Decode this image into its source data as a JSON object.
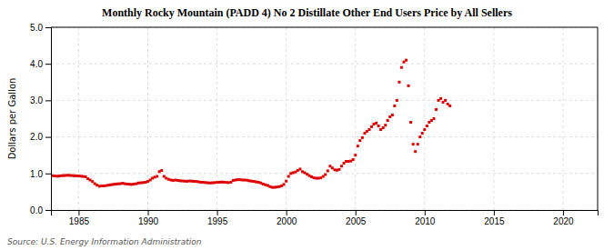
{
  "chart_data": {
    "type": "scatter",
    "title": "Monthly Rocky Mountain (PADD 4) No 2 Distillate Other End Users Price by All Sellers",
    "ylabel": "Dollars per Gallon",
    "annotations": [
      "Source: U.S. Energy Information Administration"
    ],
    "color": "#dd0000",
    "marker": "square",
    "grid": true,
    "xlim": [
      1983,
      2022.5
    ],
    "ylim": [
      0,
      5
    ],
    "xticks": [
      1985,
      1990,
      1995,
      2000,
      2005,
      2010,
      2015,
      2020
    ],
    "yticks": [
      {
        "value": 0,
        "label": "0.0"
      },
      {
        "value": 1,
        "label": "1.0"
      },
      {
        "value": 2,
        "label": "2.0"
      },
      {
        "value": 3,
        "label": "3.0"
      },
      {
        "value": 4,
        "label": "4.0"
      },
      {
        "value": 5,
        "label": "5.0"
      }
    ],
    "x": [
      1983.17,
      1983.33,
      1983.5,
      1983.67,
      1983.83,
      1984,
      1984.17,
      1984.33,
      1984.5,
      1984.67,
      1984.83,
      1985,
      1985.17,
      1985.33,
      1985.5,
      1985.67,
      1985.83,
      1986,
      1986.17,
      1986.33,
      1986.5,
      1986.67,
      1986.83,
      1987,
      1987.17,
      1987.33,
      1987.5,
      1987.67,
      1987.83,
      1988,
      1988.17,
      1988.33,
      1988.5,
      1988.67,
      1988.83,
      1989,
      1989.17,
      1989.33,
      1989.5,
      1989.67,
      1989.83,
      1990,
      1990.17,
      1990.33,
      1990.5,
      1990.67,
      1990.83,
      1991,
      1991.17,
      1991.33,
      1991.5,
      1991.67,
      1991.83,
      1992,
      1992.17,
      1992.33,
      1992.5,
      1992.67,
      1992.83,
      1993,
      1993.17,
      1993.33,
      1993.5,
      1993.67,
      1993.83,
      1994,
      1994.17,
      1994.33,
      1994.5,
      1994.67,
      1994.83,
      1995,
      1995.17,
      1995.33,
      1995.5,
      1995.67,
      1995.83,
      1996,
      1996.17,
      1996.33,
      1996.5,
      1996.67,
      1996.83,
      1997,
      1997.17,
      1997.33,
      1997.5,
      1997.67,
      1997.83,
      1998,
      1998.17,
      1998.33,
      1998.5,
      1998.67,
      1998.83,
      1999,
      1999.17,
      1999.33,
      1999.5,
      1999.67,
      1999.83,
      2000,
      2000.17,
      2000.33,
      2000.5,
      2000.67,
      2000.83,
      2001,
      2001.17,
      2001.33,
      2001.5,
      2001.67,
      2001.83,
      2002,
      2002.17,
      2002.33,
      2002.5,
      2002.67,
      2002.83,
      2003,
      2003.17,
      2003.33,
      2003.5,
      2003.67,
      2003.83,
      2004,
      2004.17,
      2004.33,
      2004.5,
      2004.67,
      2004.83,
      2005,
      2005.17,
      2005.33,
      2005.5,
      2005.67,
      2005.83,
      2006,
      2006.17,
      2006.33,
      2006.5,
      2006.67,
      2006.83,
      2007,
      2007.17,
      2007.33,
      2007.5,
      2007.67,
      2007.83,
      2008,
      2008.17,
      2008.33,
      2008.5,
      2008.67,
      2008.83,
      2009,
      2009.17,
      2009.33,
      2009.5,
      2009.67,
      2009.83,
      2010,
      2010.17,
      2010.33,
      2010.5,
      2010.67,
      2010.83,
      2011,
      2011.17,
      2011.33,
      2011.5,
      2011.67,
      2011.83
    ],
    "values": [
      0.937,
      0.93,
      0.925,
      0.935,
      0.94,
      0.945,
      0.95,
      0.948,
      0.942,
      0.938,
      0.935,
      0.93,
      0.925,
      0.918,
      0.91,
      0.855,
      0.82,
      0.78,
      0.72,
      0.68,
      0.65,
      0.66,
      0.66,
      0.67,
      0.68,
      0.69,
      0.7,
      0.71,
      0.715,
      0.72,
      0.73,
      0.72,
      0.71,
      0.705,
      0.7,
      0.71,
      0.72,
      0.74,
      0.745,
      0.75,
      0.76,
      0.78,
      0.82,
      0.87,
      0.9,
      0.92,
      1.05,
      1.08,
      0.92,
      0.87,
      0.84,
      0.82,
      0.81,
      0.82,
      0.81,
      0.8,
      0.795,
      0.79,
      0.785,
      0.795,
      0.79,
      0.785,
      0.78,
      0.77,
      0.76,
      0.76,
      0.75,
      0.745,
      0.74,
      0.745,
      0.75,
      0.755,
      0.76,
      0.765,
      0.76,
      0.755,
      0.75,
      0.76,
      0.81,
      0.82,
      0.83,
      0.83,
      0.82,
      0.82,
      0.815,
      0.8,
      0.79,
      0.78,
      0.77,
      0.76,
      0.74,
      0.71,
      0.69,
      0.67,
      0.64,
      0.62,
      0.62,
      0.63,
      0.64,
      0.66,
      0.7,
      0.79,
      0.92,
      1.0,
      1.02,
      1.04,
      1.08,
      1.12,
      1.05,
      1.02,
      0.98,
      0.94,
      0.91,
      0.88,
      0.87,
      0.87,
      0.88,
      0.92,
      0.97,
      1.07,
      1.2,
      1.15,
      1.1,
      1.09,
      1.11,
      1.2,
      1.28,
      1.33,
      1.33,
      1.34,
      1.38,
      1.5,
      1.75,
      1.9,
      1.98,
      2.1,
      2.15,
      2.2,
      2.28,
      2.35,
      2.38,
      2.3,
      2.2,
      2.25,
      2.32,
      2.45,
      2.55,
      2.6,
      2.85,
      3.0,
      3.5,
      3.9,
      4.05,
      4.1,
      3.4,
      2.4,
      1.8,
      1.6,
      1.8,
      2.0,
      2.1,
      2.2,
      2.3,
      2.4,
      2.45,
      2.5,
      2.75,
      3.0,
      3.05,
      2.95,
      3.0,
      2.9,
      2.85
    ]
  }
}
